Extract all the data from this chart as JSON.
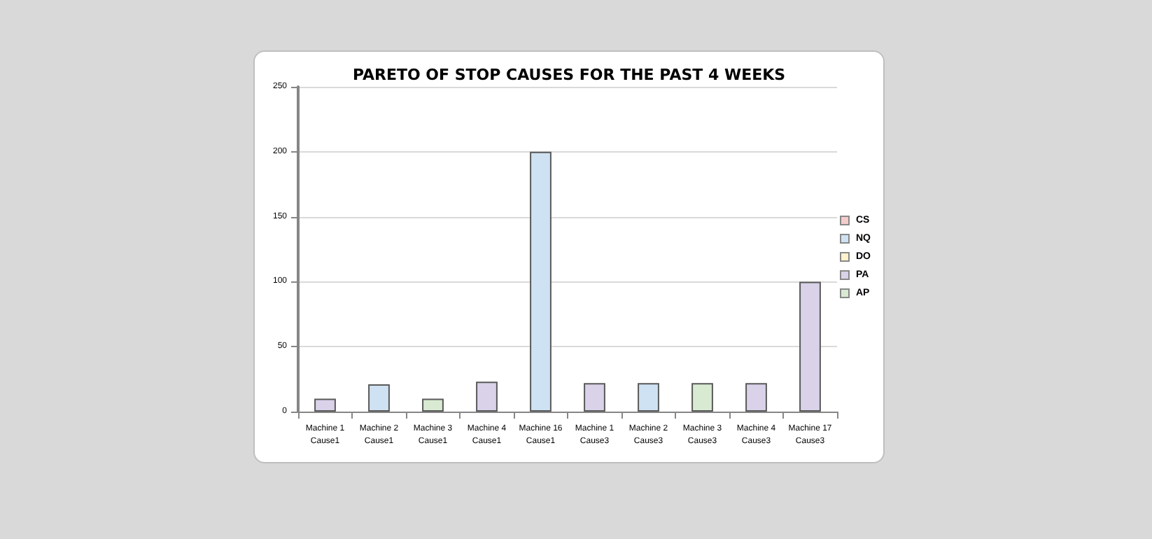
{
  "chart_data": {
    "type": "bar",
    "title": "PARETO OF STOP CAUSES FOR THE PAST 4 WEEKS",
    "stacked": true,
    "categories": [
      "Machine 1\nCause1",
      "Machine 2\nCause1",
      "Machine 3\nCause1",
      "Machine 4\nCause1",
      "Machine 16\nCause1",
      "Machine 1\nCause3",
      "Machine 2\nCause3",
      "Machine 3\nCause3",
      "Machine 4\nCause3",
      "Machine 17\nCause3"
    ],
    "series": [
      {
        "name": "CS",
        "color": "#f4cccc",
        "values": [
          null,
          null,
          null,
          null,
          null,
          null,
          null,
          null,
          null,
          null
        ]
      },
      {
        "name": "NQ",
        "color": "#cfe2f3",
        "values": [
          null,
          21,
          null,
          null,
          200,
          null,
          22,
          null,
          null,
          null
        ]
      },
      {
        "name": "DO",
        "color": "#fff2cc",
        "values": [
          null,
          null,
          null,
          null,
          null,
          null,
          null,
          null,
          null,
          null
        ]
      },
      {
        "name": "PA",
        "color": "#d9d2e9",
        "values": [
          10,
          null,
          null,
          23,
          null,
          22,
          null,
          null,
          22,
          100
        ]
      },
      {
        "name": "AP",
        "color": "#d9ead3",
        "values": [
          null,
          null,
          10,
          null,
          null,
          null,
          null,
          22,
          null,
          null
        ]
      }
    ],
    "ylim": [
      0,
      250
    ],
    "yticks": [
      0,
      50,
      100,
      150,
      200,
      250
    ],
    "grid": "y",
    "legend": "right"
  }
}
